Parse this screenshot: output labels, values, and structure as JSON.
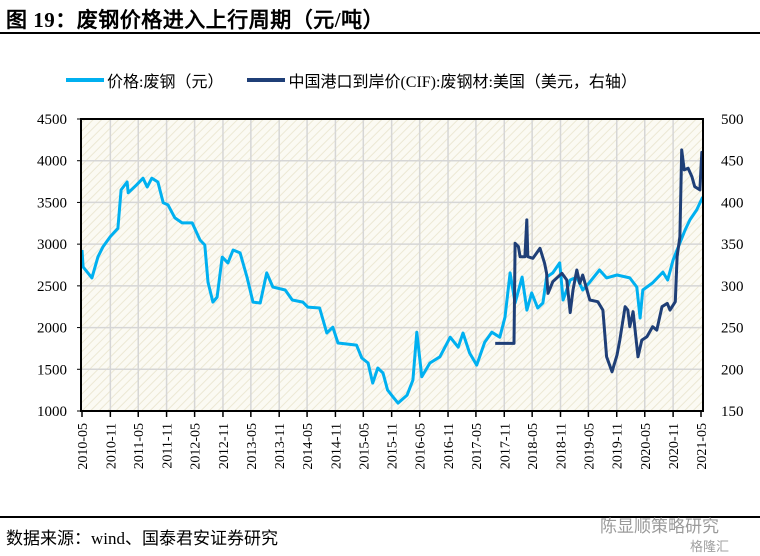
{
  "header": {
    "title": "图 19：废钢价格进入上行周期（元/吨）"
  },
  "footer": {
    "source": "数据来源：wind、国泰君安证券研究",
    "watermark": "陈显顺策略研究",
    "watermark_logo": "格隆汇"
  },
  "chart_data": {
    "type": "line",
    "title": "",
    "grid": true,
    "legend_placement": "top",
    "x_ticks": [
      "2010-05",
      "2010-11",
      "2011-05",
      "2011-11",
      "2012-05",
      "2012-11",
      "2013-05",
      "2013-11",
      "2014-05",
      "2014-11",
      "2015-05",
      "2015-11",
      "2016-05",
      "2016-11",
      "2017-05",
      "2017-11",
      "2018-05",
      "2018-11",
      "2019-05",
      "2019-11",
      "2020-05",
      "2020-11",
      "2021-05"
    ],
    "xlim": [
      "2010-05-01",
      "2021-05-01"
    ],
    "y_left": {
      "ylim": [
        1000,
        4500
      ],
      "ticks": [
        1000,
        1500,
        2000,
        2500,
        3000,
        3500,
        4000,
        4500
      ]
    },
    "y_right": {
      "ylim": [
        150,
        500
      ],
      "ticks": [
        150,
        200,
        250,
        300,
        350,
        400,
        450,
        500
      ]
    },
    "series": [
      {
        "name": "价格:废钢（元）",
        "axis": "left",
        "color": "#00b0f0",
        "points": [
          [
            "2010-05-01",
            2930
          ],
          [
            "2010-05-08",
            2727
          ],
          [
            "2010-07-04",
            2595
          ],
          [
            "2010-08-13",
            2850
          ],
          [
            "2010-09-15",
            2970
          ],
          [
            "2010-11-01",
            3090
          ],
          [
            "2010-12-20",
            3190
          ],
          [
            "2011-01-10",
            3650
          ],
          [
            "2011-02-18",
            3745
          ],
          [
            "2011-02-25",
            3615
          ],
          [
            "2011-04-20",
            3710
          ],
          [
            "2011-06-01",
            3790
          ],
          [
            "2011-06-28",
            3685
          ],
          [
            "2011-07-28",
            3790
          ],
          [
            "2011-09-06",
            3745
          ],
          [
            "2011-10-10",
            3495
          ],
          [
            "2011-11-10",
            3470
          ],
          [
            "2011-12-25",
            3315
          ],
          [
            "2012-02-10",
            3255
          ],
          [
            "2012-04-15",
            3255
          ],
          [
            "2012-06-05",
            3050
          ],
          [
            "2012-07-06",
            2990
          ],
          [
            "2012-07-27",
            2545
          ],
          [
            "2012-08-28",
            2305
          ],
          [
            "2012-09-24",
            2365
          ],
          [
            "2012-10-27",
            2845
          ],
          [
            "2012-12-03",
            2775
          ],
          [
            "2013-01-06",
            2930
          ],
          [
            "2013-02-20",
            2895
          ],
          [
            "2013-04-06",
            2605
          ],
          [
            "2013-05-15",
            2305
          ],
          [
            "2013-07-01",
            2295
          ],
          [
            "2013-08-12",
            2655
          ],
          [
            "2013-09-21",
            2485
          ],
          [
            "2013-12-10",
            2450
          ],
          [
            "2014-01-25",
            2330
          ],
          [
            "2014-04-03",
            2305
          ],
          [
            "2014-05-06",
            2245
          ],
          [
            "2014-07-21",
            2235
          ],
          [
            "2014-09-06",
            1935
          ],
          [
            "2014-10-15",
            2005
          ],
          [
            "2014-11-18",
            1815
          ],
          [
            "2015-03-18",
            1790
          ],
          [
            "2015-04-21",
            1635
          ],
          [
            "2015-06-01",
            1575
          ],
          [
            "2015-07-01",
            1335
          ],
          [
            "2015-08-03",
            1515
          ],
          [
            "2015-09-06",
            1455
          ],
          [
            "2015-10-06",
            1250
          ],
          [
            "2015-11-09",
            1170
          ],
          [
            "2015-12-12",
            1095
          ],
          [
            "2016-02-09",
            1190
          ],
          [
            "2016-03-18",
            1370
          ],
          [
            "2016-04-12",
            1945
          ],
          [
            "2016-05-15",
            1410
          ],
          [
            "2016-07-06",
            1575
          ],
          [
            "2016-09-09",
            1650
          ],
          [
            "2016-11-15",
            1885
          ],
          [
            "2017-01-06",
            1765
          ],
          [
            "2017-02-06",
            1935
          ],
          [
            "2017-03-21",
            1695
          ],
          [
            "2017-05-06",
            1550
          ],
          [
            "2017-06-27",
            1825
          ],
          [
            "2017-08-12",
            1945
          ],
          [
            "2017-10-03",
            1885
          ],
          [
            "2017-11-06",
            2125
          ],
          [
            "2017-12-09",
            2655
          ],
          [
            "2018-01-10",
            2295
          ],
          [
            "2018-02-25",
            2605
          ],
          [
            "2018-03-28",
            2210
          ],
          [
            "2018-04-28",
            2415
          ],
          [
            "2018-06-06",
            2235
          ],
          [
            "2018-07-10",
            2295
          ],
          [
            "2018-08-03",
            2605
          ],
          [
            "2018-09-12",
            2655
          ],
          [
            "2018-10-27",
            2775
          ],
          [
            "2018-11-18",
            2330
          ],
          [
            "2019-01-03",
            2570
          ],
          [
            "2019-02-15",
            2605
          ],
          [
            "2019-03-25",
            2450
          ],
          [
            "2019-05-10",
            2545
          ],
          [
            "2019-07-12",
            2690
          ],
          [
            "2019-08-27",
            2595
          ],
          [
            "2019-11-03",
            2630
          ],
          [
            "2020-01-25",
            2595
          ],
          [
            "2020-03-10",
            2485
          ],
          [
            "2020-04-01",
            2115
          ],
          [
            "2020-04-18",
            2450
          ],
          [
            "2020-06-21",
            2535
          ],
          [
            "2020-08-27",
            2665
          ],
          [
            "2020-09-27",
            2570
          ],
          [
            "2020-11-01",
            2810
          ],
          [
            "2020-12-15",
            3015
          ],
          [
            "2021-01-18",
            3170
          ],
          [
            "2021-02-18",
            3290
          ],
          [
            "2021-04-03",
            3410
          ],
          [
            "2021-05-12",
            3565
          ]
        ]
      },
      {
        "name": "中国港口到岸价(CIF):废钢材:美国（美元，右轴）",
        "axis": "right",
        "color": "#1f3f77",
        "points": [
          [
            "2017-09-03",
            231
          ],
          [
            "2018-01-03",
            231
          ],
          [
            "2018-01-10",
            351
          ],
          [
            "2018-02-01",
            347
          ],
          [
            "2018-02-12",
            335
          ],
          [
            "2018-03-15",
            335
          ],
          [
            "2018-03-27",
            379
          ],
          [
            "2018-04-03",
            335
          ],
          [
            "2018-05-06",
            333
          ],
          [
            "2018-06-21",
            345
          ],
          [
            "2018-07-21",
            327
          ],
          [
            "2018-08-03",
            315
          ],
          [
            "2018-08-12",
            291
          ],
          [
            "2018-09-12",
            305
          ],
          [
            "2018-11-10",
            315
          ],
          [
            "2018-12-12",
            307
          ],
          [
            "2019-01-03",
            268
          ],
          [
            "2019-01-21",
            295
          ],
          [
            "2019-02-15",
            319
          ],
          [
            "2019-03-06",
            303
          ],
          [
            "2019-03-25",
            313
          ],
          [
            "2019-05-10",
            283
          ],
          [
            "2019-07-01",
            281
          ],
          [
            "2019-08-03",
            271
          ],
          [
            "2019-08-27",
            215
          ],
          [
            "2019-10-01",
            197
          ],
          [
            "2019-11-03",
            217
          ],
          [
            "2019-11-21",
            235
          ],
          [
            "2019-12-25",
            275
          ],
          [
            "2020-01-12",
            271
          ],
          [
            "2020-01-25",
            251
          ],
          [
            "2020-02-15",
            269
          ],
          [
            "2020-03-18",
            215
          ],
          [
            "2020-04-12",
            235
          ],
          [
            "2020-05-15",
            239
          ],
          [
            "2020-06-21",
            251
          ],
          [
            "2020-07-18",
            247
          ],
          [
            "2020-08-21",
            275
          ],
          [
            "2020-09-24",
            279
          ],
          [
            "2020-10-12",
            271
          ],
          [
            "2020-11-15",
            281
          ],
          [
            "2020-11-27",
            335
          ],
          [
            "2020-12-15",
            359
          ],
          [
            "2020-12-27",
            463
          ],
          [
            "2021-01-12",
            439
          ],
          [
            "2021-02-06",
            441
          ],
          [
            "2021-03-03",
            431
          ],
          [
            "2021-03-21",
            419
          ],
          [
            "2021-04-24",
            415
          ],
          [
            "2021-05-06",
            460
          ],
          [
            "2021-05-12",
            459
          ]
        ]
      }
    ]
  }
}
